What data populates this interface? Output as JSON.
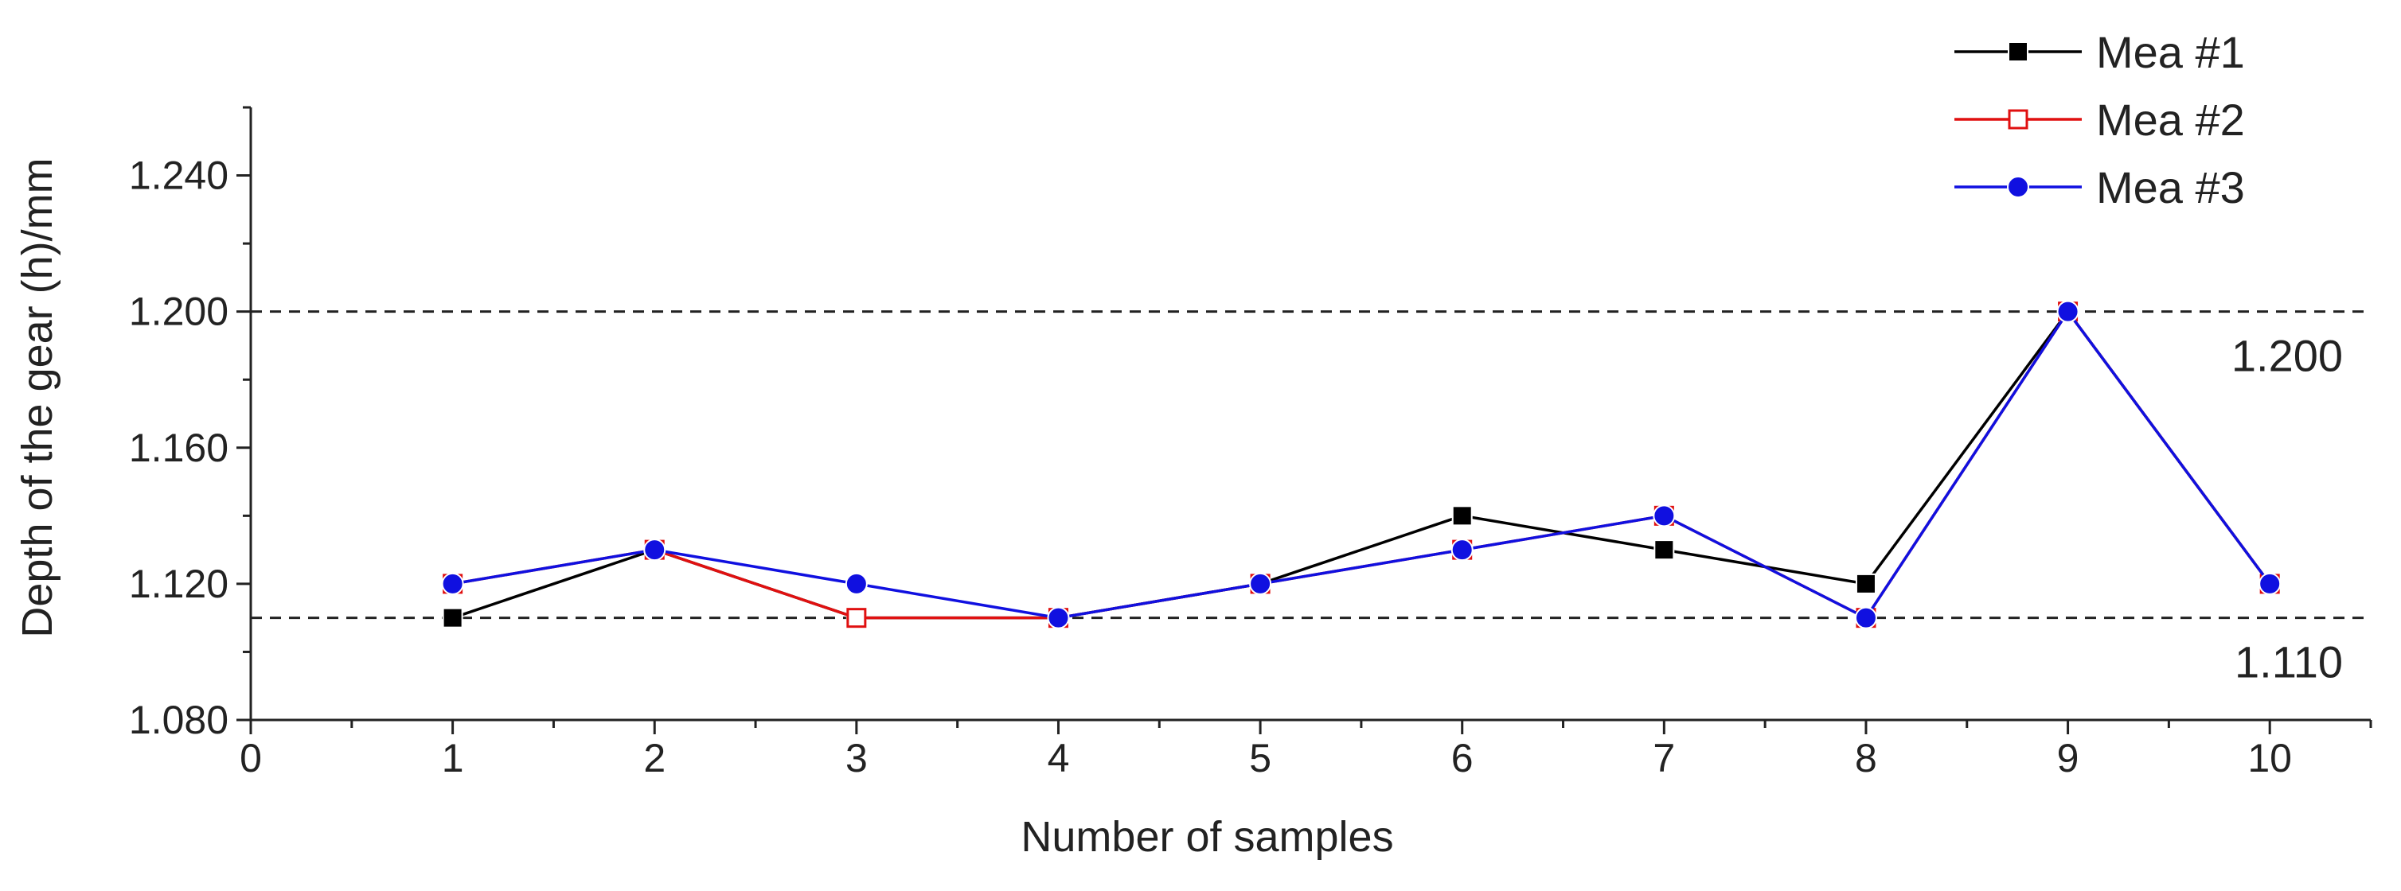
{
  "chart_data": {
    "type": "line",
    "title": "",
    "xlabel": "Number of samples",
    "ylabel": "Depth of the gear (h)/mm",
    "xlim": [
      0,
      10.5
    ],
    "ylim": [
      1.08,
      1.26
    ],
    "x_ticks": [
      0,
      1,
      2,
      3,
      4,
      5,
      6,
      7,
      8,
      9,
      10
    ],
    "x_tick_labels": [
      "0",
      "1",
      "2",
      "3",
      "4",
      "5",
      "6",
      "7",
      "8",
      "9",
      "10"
    ],
    "y_ticks": [
      1.08,
      1.12,
      1.16,
      1.2,
      1.24
    ],
    "y_tick_labels": [
      "1.080",
      "1.120",
      "1.160",
      "1.200",
      "1.240"
    ],
    "x": [
      1,
      2,
      3,
      4,
      5,
      6,
      7,
      8,
      9,
      10
    ],
    "series": [
      {
        "name": "Mea #1",
        "color": "#000000",
        "marker": "square-filled",
        "values": [
          1.11,
          1.13,
          1.11,
          1.11,
          1.12,
          1.14,
          1.13,
          1.12,
          1.2,
          1.12
        ]
      },
      {
        "name": "Mea #2",
        "color": "#e01010",
        "marker": "square-open",
        "values": [
          1.12,
          1.13,
          1.11,
          1.11,
          1.12,
          1.13,
          1.14,
          1.11,
          1.2,
          1.12
        ]
      },
      {
        "name": "Mea #3",
        "color": "#1010e0",
        "marker": "circle-filled",
        "values": [
          1.12,
          1.13,
          1.12,
          1.11,
          1.12,
          1.13,
          1.14,
          1.11,
          1.2,
          1.12
        ]
      }
    ],
    "reference_lines": [
      {
        "value": 1.2,
        "label": "1.200",
        "style": "dashed"
      },
      {
        "value": 1.11,
        "label": "1.110",
        "style": "dashed"
      }
    ],
    "legend_position": "top-right",
    "grid": false
  }
}
